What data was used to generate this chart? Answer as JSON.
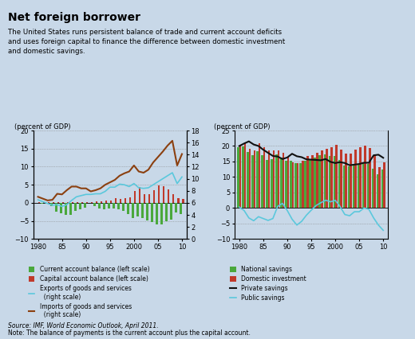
{
  "title": "Net foreign borrower",
  "subtitle": "The United States runs persistent balance of trade and current account deficits\nand uses foreign capital to finance the difference between domestic investment\nand domestic savings.",
  "source": "Source: IMF, ‪World Economic Outlook‬, April 2011.",
  "note": "Note: The balance of payments is the current account plus the capital account.",
  "bg_color": "#c8d8e8",
  "years": [
    1980,
    1981,
    1982,
    1983,
    1984,
    1985,
    1986,
    1987,
    1988,
    1989,
    1990,
    1991,
    1992,
    1993,
    1994,
    1995,
    1996,
    1997,
    1998,
    1999,
    2000,
    2001,
    2002,
    2003,
    2004,
    2005,
    2006,
    2007,
    2008,
    2009,
    2010
  ],
  "left_chart": {
    "ylabel_left": "(percent of GDP)",
    "ylim_left": [
      -10,
      20
    ],
    "ylim_right": [
      0,
      18
    ],
    "yticks_left": [
      -10,
      -5,
      0,
      5,
      10,
      15,
      20
    ],
    "yticks_right": [
      0,
      2,
      4,
      6,
      8,
      10,
      12,
      14,
      16,
      18
    ],
    "current_account": [
      0.0,
      -0.2,
      -0.2,
      -1.0,
      -2.4,
      -2.8,
      -3.3,
      -3.4,
      -2.3,
      -1.7,
      -1.4,
      0.0,
      -0.8,
      -1.5,
      -1.7,
      -1.5,
      -1.5,
      -1.7,
      -2.3,
      -3.2,
      -4.2,
      -3.8,
      -4.3,
      -4.8,
      -5.3,
      -5.9,
      -6.0,
      -5.1,
      -4.7,
      -2.7,
      -3.2
    ],
    "capital_account": [
      0.1,
      0.1,
      0.1,
      0.1,
      0.2,
      0.2,
      0.2,
      0.2,
      0.2,
      0.2,
      0.2,
      0.3,
      0.5,
      0.5,
      0.7,
      0.7,
      1.4,
      1.0,
      1.2,
      1.5,
      3.2,
      4.3,
      2.5,
      2.5,
      3.5,
      4.8,
      4.5,
      3.8,
      2.5,
      1.2,
      1.0
    ],
    "exports": [
      6.5,
      6.2,
      5.9,
      5.6,
      5.7,
      5.4,
      5.7,
      6.4,
      7.0,
      7.2,
      7.4,
      7.4,
      7.5,
      7.5,
      7.9,
      8.6,
      8.6,
      9.1,
      9.0,
      8.7,
      9.2,
      8.5,
      8.4,
      8.5,
      9.0,
      9.5,
      10.0,
      10.5,
      11.0,
      9.2,
      10.3
    ],
    "imports": [
      7.0,
      6.7,
      6.4,
      6.5,
      7.5,
      7.4,
      8.1,
      8.7,
      8.7,
      8.4,
      8.4,
      7.9,
      8.1,
      8.4,
      9.0,
      9.4,
      9.8,
      10.5,
      10.9,
      11.2,
      12.2,
      11.2,
      11.0,
      11.5,
      12.7,
      13.6,
      14.5,
      15.5,
      16.3,
      12.2,
      14.1
    ]
  },
  "right_chart": {
    "ylabel": "(percent of GDP)",
    "ylim": [
      -10,
      25
    ],
    "yticks": [
      -10,
      -5,
      0,
      5,
      10,
      15,
      20,
      25
    ],
    "national_savings": [
      19.6,
      19.9,
      18.0,
      17.0,
      18.3,
      17.0,
      15.6,
      15.8,
      17.3,
      16.3,
      15.2,
      15.3,
      14.5,
      14.5,
      15.3,
      15.7,
      16.2,
      17.0,
      17.3,
      16.7,
      16.8,
      15.6,
      13.7,
      13.5,
      13.7,
      14.1,
      14.6,
      14.1,
      12.6,
      11.0,
      12.5
    ],
    "domestic_investment": [
      20.5,
      21.0,
      19.0,
      18.5,
      21.0,
      19.5,
      18.5,
      18.7,
      18.7,
      17.7,
      16.6,
      14.8,
      14.5,
      15.3,
      16.8,
      17.1,
      17.8,
      18.5,
      19.2,
      19.7,
      20.5,
      18.8,
      17.5,
      17.5,
      18.8,
      19.7,
      20.0,
      19.3,
      17.2,
      13.1,
      14.8
    ],
    "private_savings": [
      20.0,
      20.8,
      21.5,
      20.5,
      20.0,
      18.8,
      17.8,
      16.8,
      16.6,
      15.8,
      16.3,
      17.5,
      16.7,
      16.4,
      15.7,
      15.6,
      15.5,
      15.4,
      15.8,
      14.9,
      14.5,
      14.8,
      14.5,
      13.8,
      14.0,
      14.2,
      14.6,
      14.6,
      17.0,
      17.2,
      16.2
    ],
    "public_savings": [
      0.3,
      -0.8,
      -3.2,
      -4.1,
      -2.8,
      -3.4,
      -4.0,
      -3.4,
      0.5,
      1.5,
      -0.8,
      -3.6,
      -5.5,
      -4.3,
      -2.3,
      -0.7,
      0.8,
      1.7,
      2.5,
      2.0,
      2.5,
      0.5,
      -2.1,
      -2.5,
      -1.2,
      -1.2,
      0.0,
      -0.4,
      -3.2,
      -5.5,
      -7.2
    ]
  },
  "colors": {
    "green": "#4aa83c",
    "red": "#c0392b",
    "blue": "#5bc8dc",
    "brown": "#8b4010",
    "black": "#111111"
  }
}
